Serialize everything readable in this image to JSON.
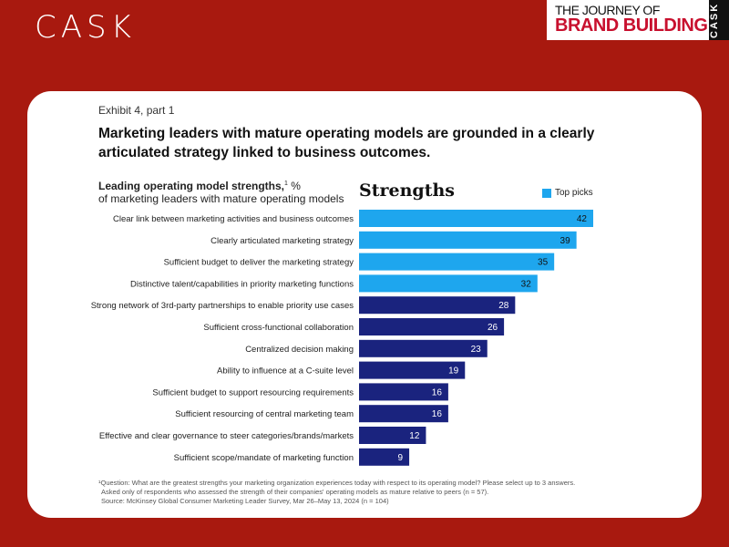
{
  "header": {
    "logo": "CASK",
    "badge_line1": "THE JOURNEY OF",
    "badge_line2": "BRAND BUILDING",
    "badge_side": "CASK"
  },
  "exhibit": "Exhibit 4, part 1",
  "title": "Marketing leaders with mature operating models are grounded in a clearly articulated strategy linked to business outcomes.",
  "subtitle_bold": "Leading operating model strengths,",
  "subtitle_sup": "1",
  "subtitle_unit": " %",
  "subtitle_line2": "of marketing leaders with mature operating models",
  "colors": {
    "top": "#1ea6ee",
    "other": "#1a237e"
  },
  "chart_data": {
    "type": "bar",
    "orientation": "horizontal",
    "title": "Strengths",
    "legend": [
      "Top picks"
    ],
    "legend_position": "top-right",
    "categories": [
      "Clear link between marketing activities and business outcomes",
      "Clearly articulated marketing strategy",
      "Sufficient budget to deliver the marketing strategy",
      "Distinctive talent/capabilities in priority marketing functions",
      "Strong network of 3rd-party partnerships to enable priority use cases",
      "Sufficient cross-functional collaboration",
      "Centralized decision making",
      "Ability to influence at a C-suite level",
      "Sufficient budget to support resourcing requirements",
      "Sufficient resourcing of central marketing team",
      "Effective and clear governance to steer categories/brands/markets",
      "Sufficient scope/mandate of marketing function"
    ],
    "values": [
      42,
      39,
      35,
      32,
      28,
      26,
      23,
      19,
      16,
      16,
      12,
      9
    ],
    "top_picks": [
      true,
      true,
      true,
      true,
      false,
      false,
      false,
      false,
      false,
      false,
      false,
      false
    ],
    "xlim": [
      0,
      42
    ]
  },
  "footnotes": [
    "¹Question: What are the greatest strengths your marketing organization experiences today with respect to its operating model? Please select up to 3 answers.",
    "Asked only of respondents who assessed the strength of their companies' operating models as mature relative to peers (n = 57).",
    "Source: McKinsey Global Consumer Marketing Leader Survey, Mar 26–May 13, 2024 (n = 104)"
  ]
}
